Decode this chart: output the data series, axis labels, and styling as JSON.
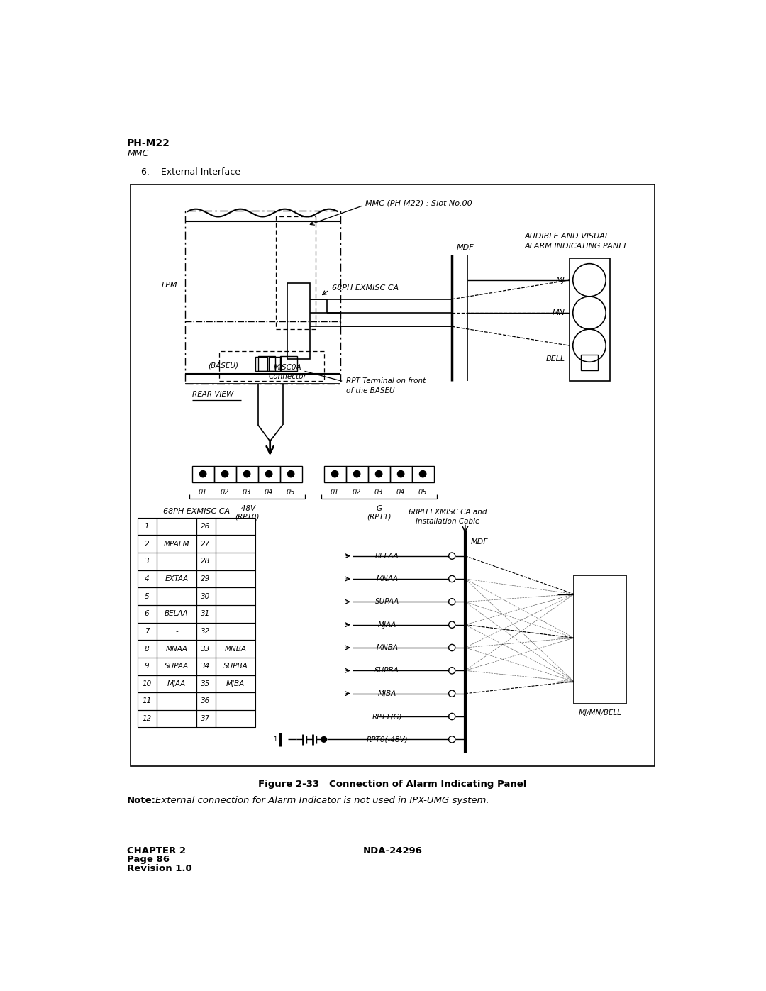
{
  "page_title": "PH-M22",
  "page_subtitle": "MMC",
  "section_title": "6.    External Interface",
  "figure_caption": "Figure 2-33   Connection of Alarm Indicating Panel",
  "note_label": "Note:",
  "note_text": "    External connection for Alarm Indicator is not used in IPX-UMG system.",
  "footer_left": "CHAPTER 2\nPage 86\nRevision 1.0",
  "footer_right": "NDA-24296",
  "bg_color": "#ffffff",
  "table_rows": [
    [
      "1",
      "",
      "26",
      ""
    ],
    [
      "2",
      "MPALM",
      "27",
      ""
    ],
    [
      "3",
      "",
      "28",
      ""
    ],
    [
      "4",
      "EXTAA",
      "29",
      ""
    ],
    [
      "5",
      "",
      "30",
      ""
    ],
    [
      "6",
      "BELAA",
      "31",
      ""
    ],
    [
      "7",
      "-",
      "32",
      ""
    ],
    [
      "8",
      "MNAA",
      "33",
      "MNBA"
    ],
    [
      "9",
      "SUPAA",
      "34",
      "SUPBA"
    ],
    [
      "10",
      "MJAA",
      "35",
      "MJBA"
    ],
    [
      "11",
      "",
      "36",
      ""
    ],
    [
      "12",
      "",
      "37",
      ""
    ]
  ],
  "rpt0_labels": [
    "01",
    "02",
    "03",
    "04",
    "05"
  ],
  "rpt1_labels": [
    "01",
    "02",
    "03",
    "04",
    "05"
  ],
  "signal_labels": [
    "BELAA",
    "MNAA",
    "SUPAA",
    "MJAA",
    "MNBA",
    "SUPBA",
    "MJBA",
    "RPT1(G)",
    "RPT0(-48V)"
  ]
}
